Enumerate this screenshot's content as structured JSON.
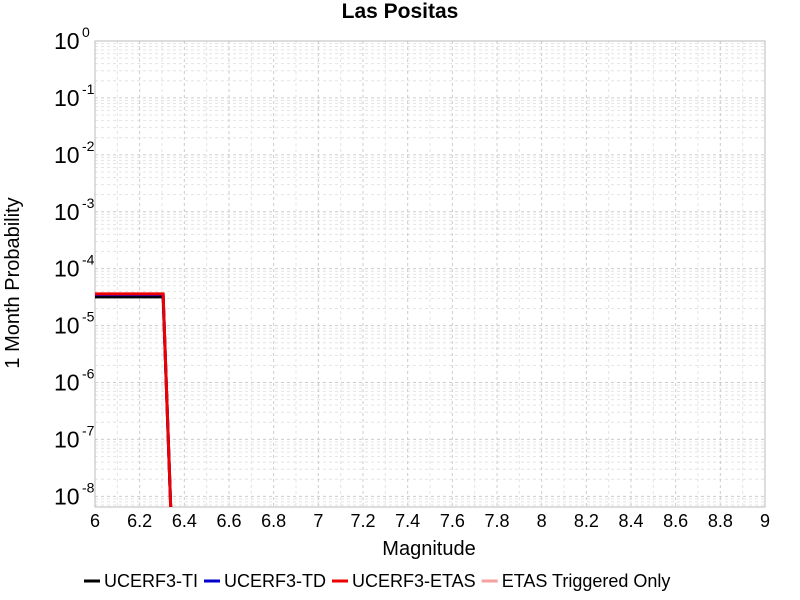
{
  "chart_data": {
    "type": "line",
    "title": "Las Positas",
    "xlabel": "Magnitude",
    "ylabel": "1 Month Probability",
    "xlim": [
      6,
      9
    ],
    "ylim": [
      6.5e-09,
      1
    ],
    "yscale": "log",
    "grid": true,
    "legend_position": "bottom",
    "x_ticks": [
      "6",
      "6.2",
      "6.4",
      "6.6",
      "6.8",
      "7",
      "7.2",
      "7.4",
      "7.6",
      "7.8",
      "8",
      "8.2",
      "8.4",
      "8.6",
      "8.8",
      "9"
    ],
    "y_ticks": [
      {
        "base": "10",
        "exp": "0"
      },
      {
        "base": "10",
        "exp": "-1"
      },
      {
        "base": "10",
        "exp": "-2"
      },
      {
        "base": "10",
        "exp": "-3"
      },
      {
        "base": "10",
        "exp": "-4"
      },
      {
        "base": "10",
        "exp": "-5"
      },
      {
        "base": "10",
        "exp": "-6"
      },
      {
        "base": "10",
        "exp": "-7"
      },
      {
        "base": "10",
        "exp": "-8"
      }
    ],
    "series": [
      {
        "name": "UCERF3-TI",
        "color": "#000000",
        "width": 3,
        "points": [
          [
            6.0,
            3.2e-05
          ],
          [
            6.3,
            3.2e-05
          ],
          [
            6.305,
            3.2e-05
          ],
          [
            6.34,
            5e-09
          ]
        ]
      },
      {
        "name": "UCERF3-TD",
        "color": "#0000cc",
        "width": 3,
        "points": [
          [
            6.0,
            3.5e-05
          ],
          [
            6.3,
            3.5e-05
          ],
          [
            6.305,
            3.5e-05
          ],
          [
            6.34,
            5e-09
          ]
        ]
      },
      {
        "name": "UCERF3-ETAS",
        "color": "#ee0000",
        "width": 3,
        "points": [
          [
            6.0,
            3.6e-05
          ],
          [
            6.3,
            3.6e-05
          ],
          [
            6.305,
            3.6e-05
          ],
          [
            6.34,
            5e-09
          ]
        ]
      },
      {
        "name": "ETAS Triggered Only",
        "color": "#f7a0a0",
        "width": 2,
        "points": []
      }
    ]
  }
}
